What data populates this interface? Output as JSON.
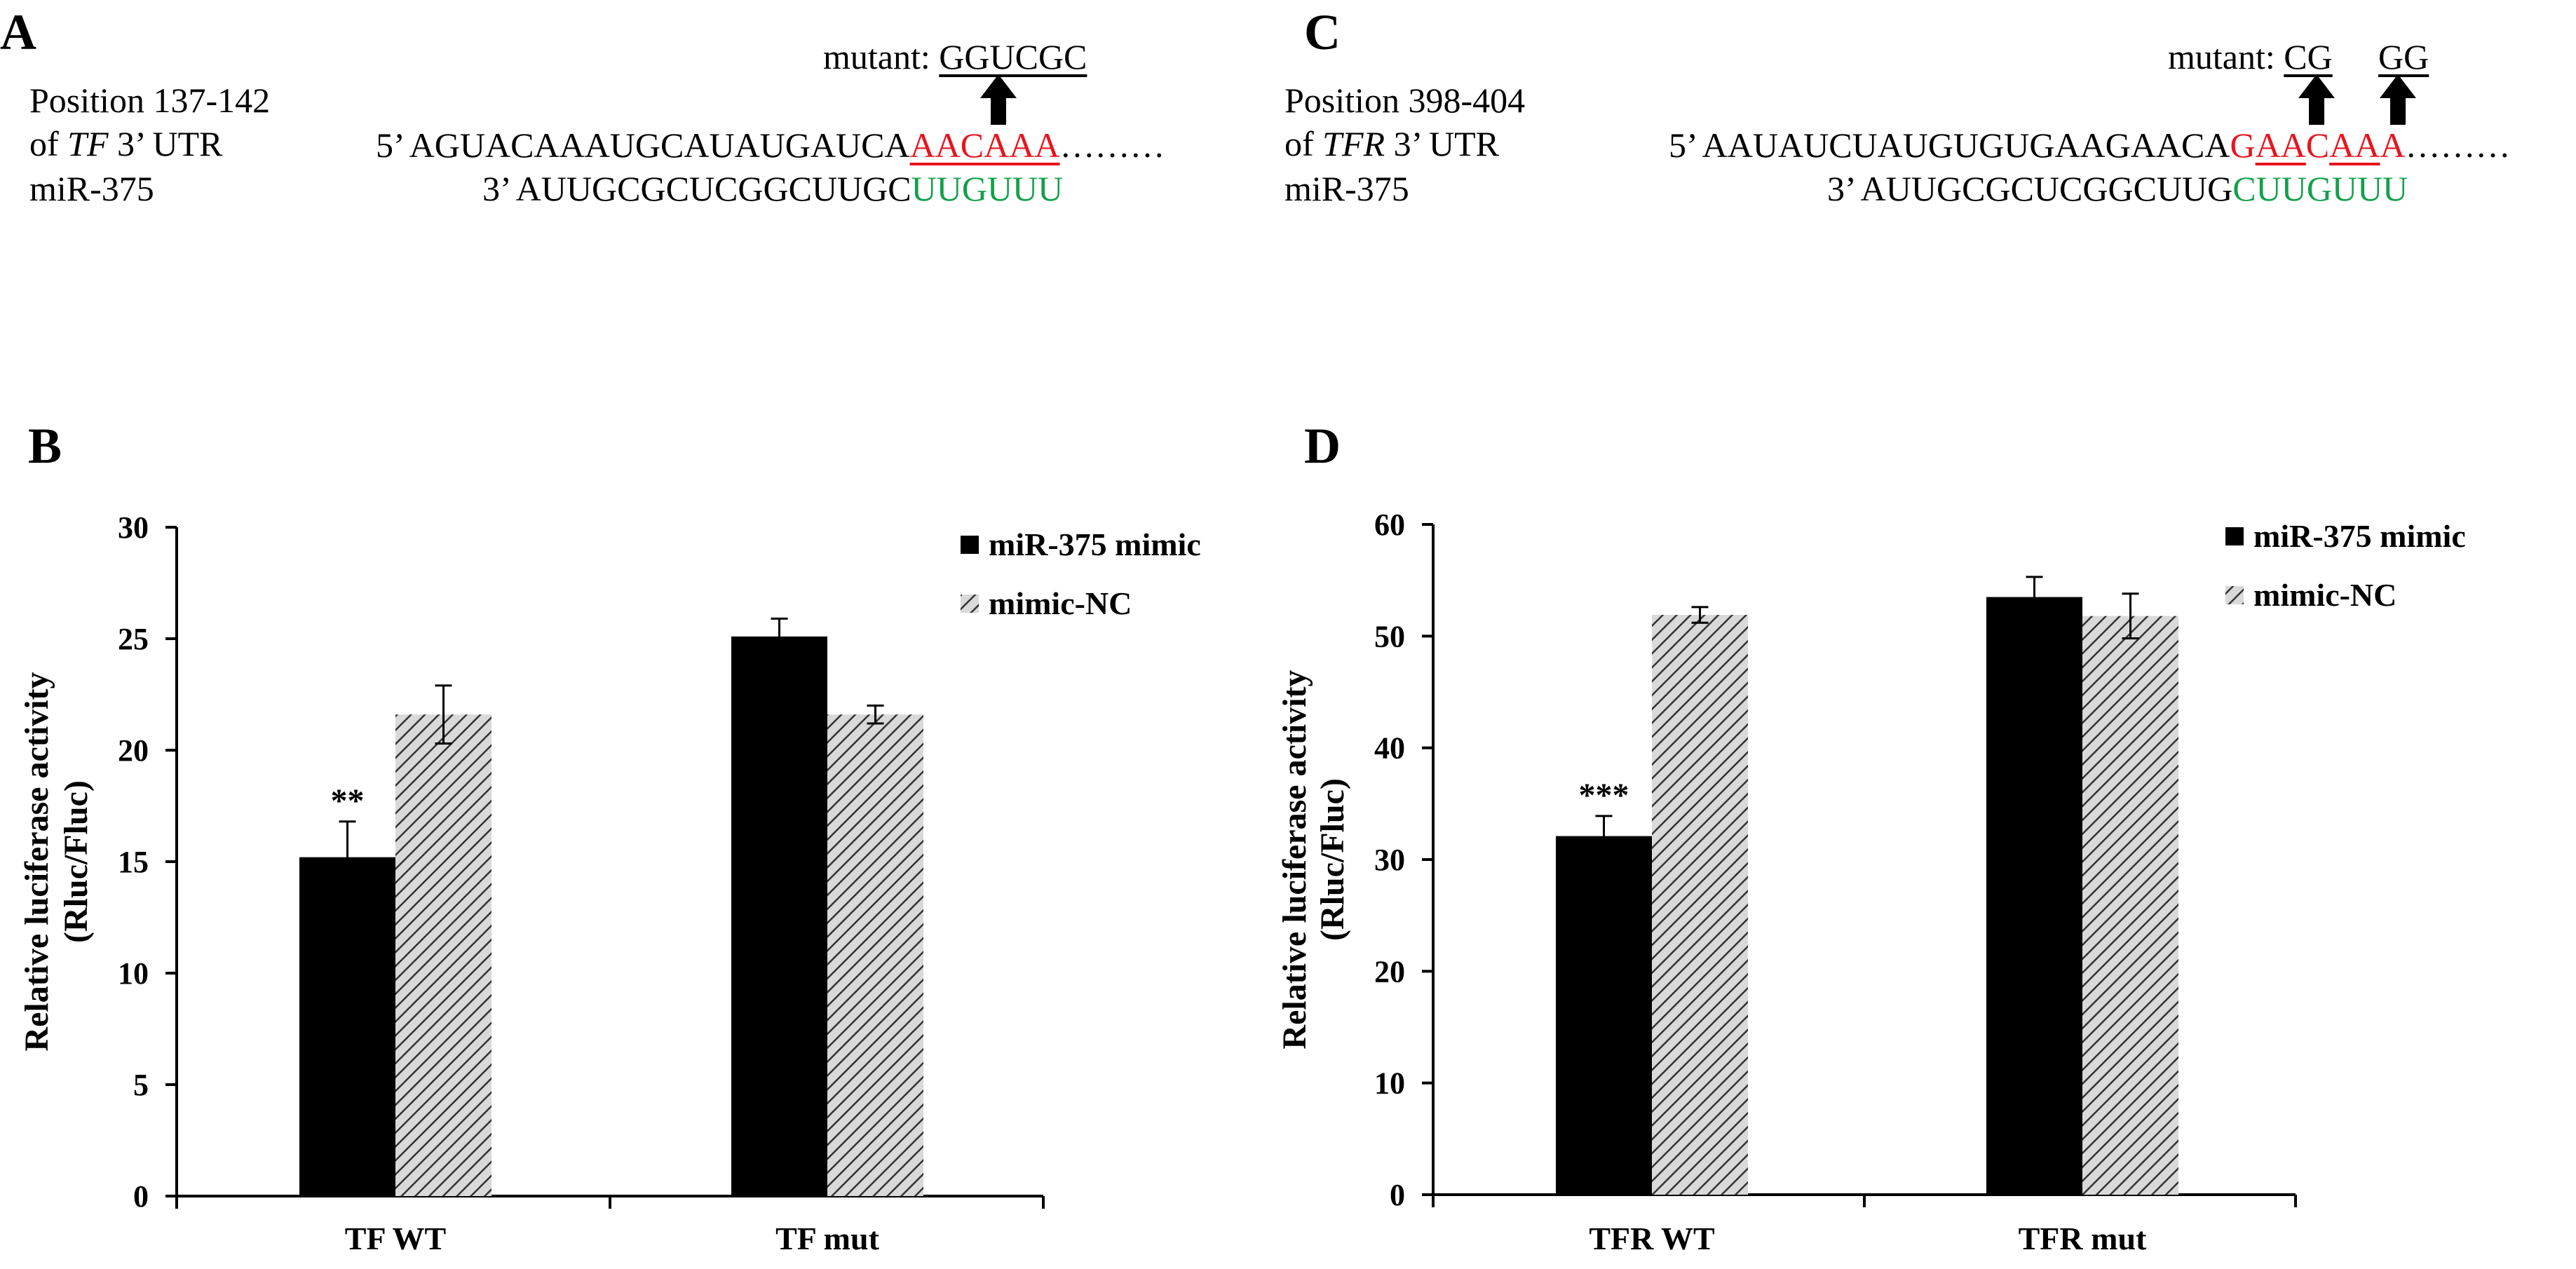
{
  "panels": {
    "A": {
      "letter": "A",
      "pos_line1": "Position 137-142",
      "pos_line2_pre": "of ",
      "pos_line2_gene": "TF",
      "pos_line2_post": " 3’ UTR",
      "mirna_label": "miR-375",
      "mutant_label": "mutant: ",
      "mutant_seq": "GGUCGC",
      "seq5_prefix": "5’ AGUACAAAUGCAUAUGAUCA",
      "seq5_site": "AACAAA",
      "seq5_suffix": "………",
      "seq3_prefix": "3’ AUUGCGCUCGGCUUGC",
      "seq3_seed": "UUGUUU"
    },
    "C": {
      "letter": "C",
      "pos_line1": "Position  398-404",
      "pos_line2_pre": "of ",
      "pos_line2_gene": "TFR",
      "pos_line2_post": " 3’ UTR",
      "mirna_label": "miR-375",
      "mutant_label": "mutant: ",
      "mutant_seq1": "CG",
      "mutant_seq2": "GG",
      "seq5_prefix": "5’ AAUAUCUAUGUGUGAAGAACA",
      "seq5_s1": "G",
      "seq5_s2": "AA",
      "seq5_s3": "C",
      "seq5_s4": "AA",
      "seq5_s5": "A",
      "seq5_suffix": "………",
      "seq3_prefix": "3’ AUUGCGCUCGGCUUG",
      "seq3_seed": "CUUGUUU"
    },
    "B": {
      "letter": "B"
    },
    "D": {
      "letter": "D"
    }
  },
  "colors": {
    "site": "#e8141e",
    "seed": "#13a04b",
    "bar_mimic": "#000000",
    "bar_nc_bg": "#d9d9d9"
  },
  "chart_data": [
    {
      "id": "B",
      "type": "bar",
      "ylabel": "Relative luciferase activity",
      "ylabel2": "(Rluc/Fluc)",
      "ylim": [
        0,
        30
      ],
      "yticks": [
        0,
        5,
        10,
        15,
        20,
        25,
        30
      ],
      "categories": [
        "TF WT",
        "TF mut"
      ],
      "legend_position": "top-right",
      "series": [
        {
          "name": "miR-375 mimic",
          "values": [
            15.2,
            25.1
          ],
          "errors": [
            1.6,
            0.8
          ],
          "style": "solid"
        },
        {
          "name": "mimic-NC",
          "values": [
            21.6,
            21.6
          ],
          "errors": [
            1.3,
            0.4
          ],
          "style": "hatched"
        }
      ],
      "annotations": [
        {
          "text": "**",
          "category": 0,
          "series": 0
        }
      ]
    },
    {
      "id": "D",
      "type": "bar",
      "ylabel": "Relative luciferase activity",
      "ylabel2": "(Rluc/Fluc)",
      "ylim": [
        0,
        60
      ],
      "yticks": [
        0,
        10,
        20,
        30,
        40,
        50,
        60
      ],
      "categories": [
        "TFR WT",
        "TFR mut"
      ],
      "legend_position": "top-right",
      "series": [
        {
          "name": "miR-375 mimic",
          "values": [
            32.1,
            53.5
          ],
          "errors": [
            1.8,
            1.8
          ],
          "style": "solid"
        },
        {
          "name": "mimic-NC",
          "values": [
            51.9,
            51.8
          ],
          "errors": [
            0.7,
            2.0
          ],
          "style": "hatched"
        }
      ],
      "annotations": [
        {
          "text": "***",
          "category": 0,
          "series": 0
        }
      ]
    }
  ]
}
